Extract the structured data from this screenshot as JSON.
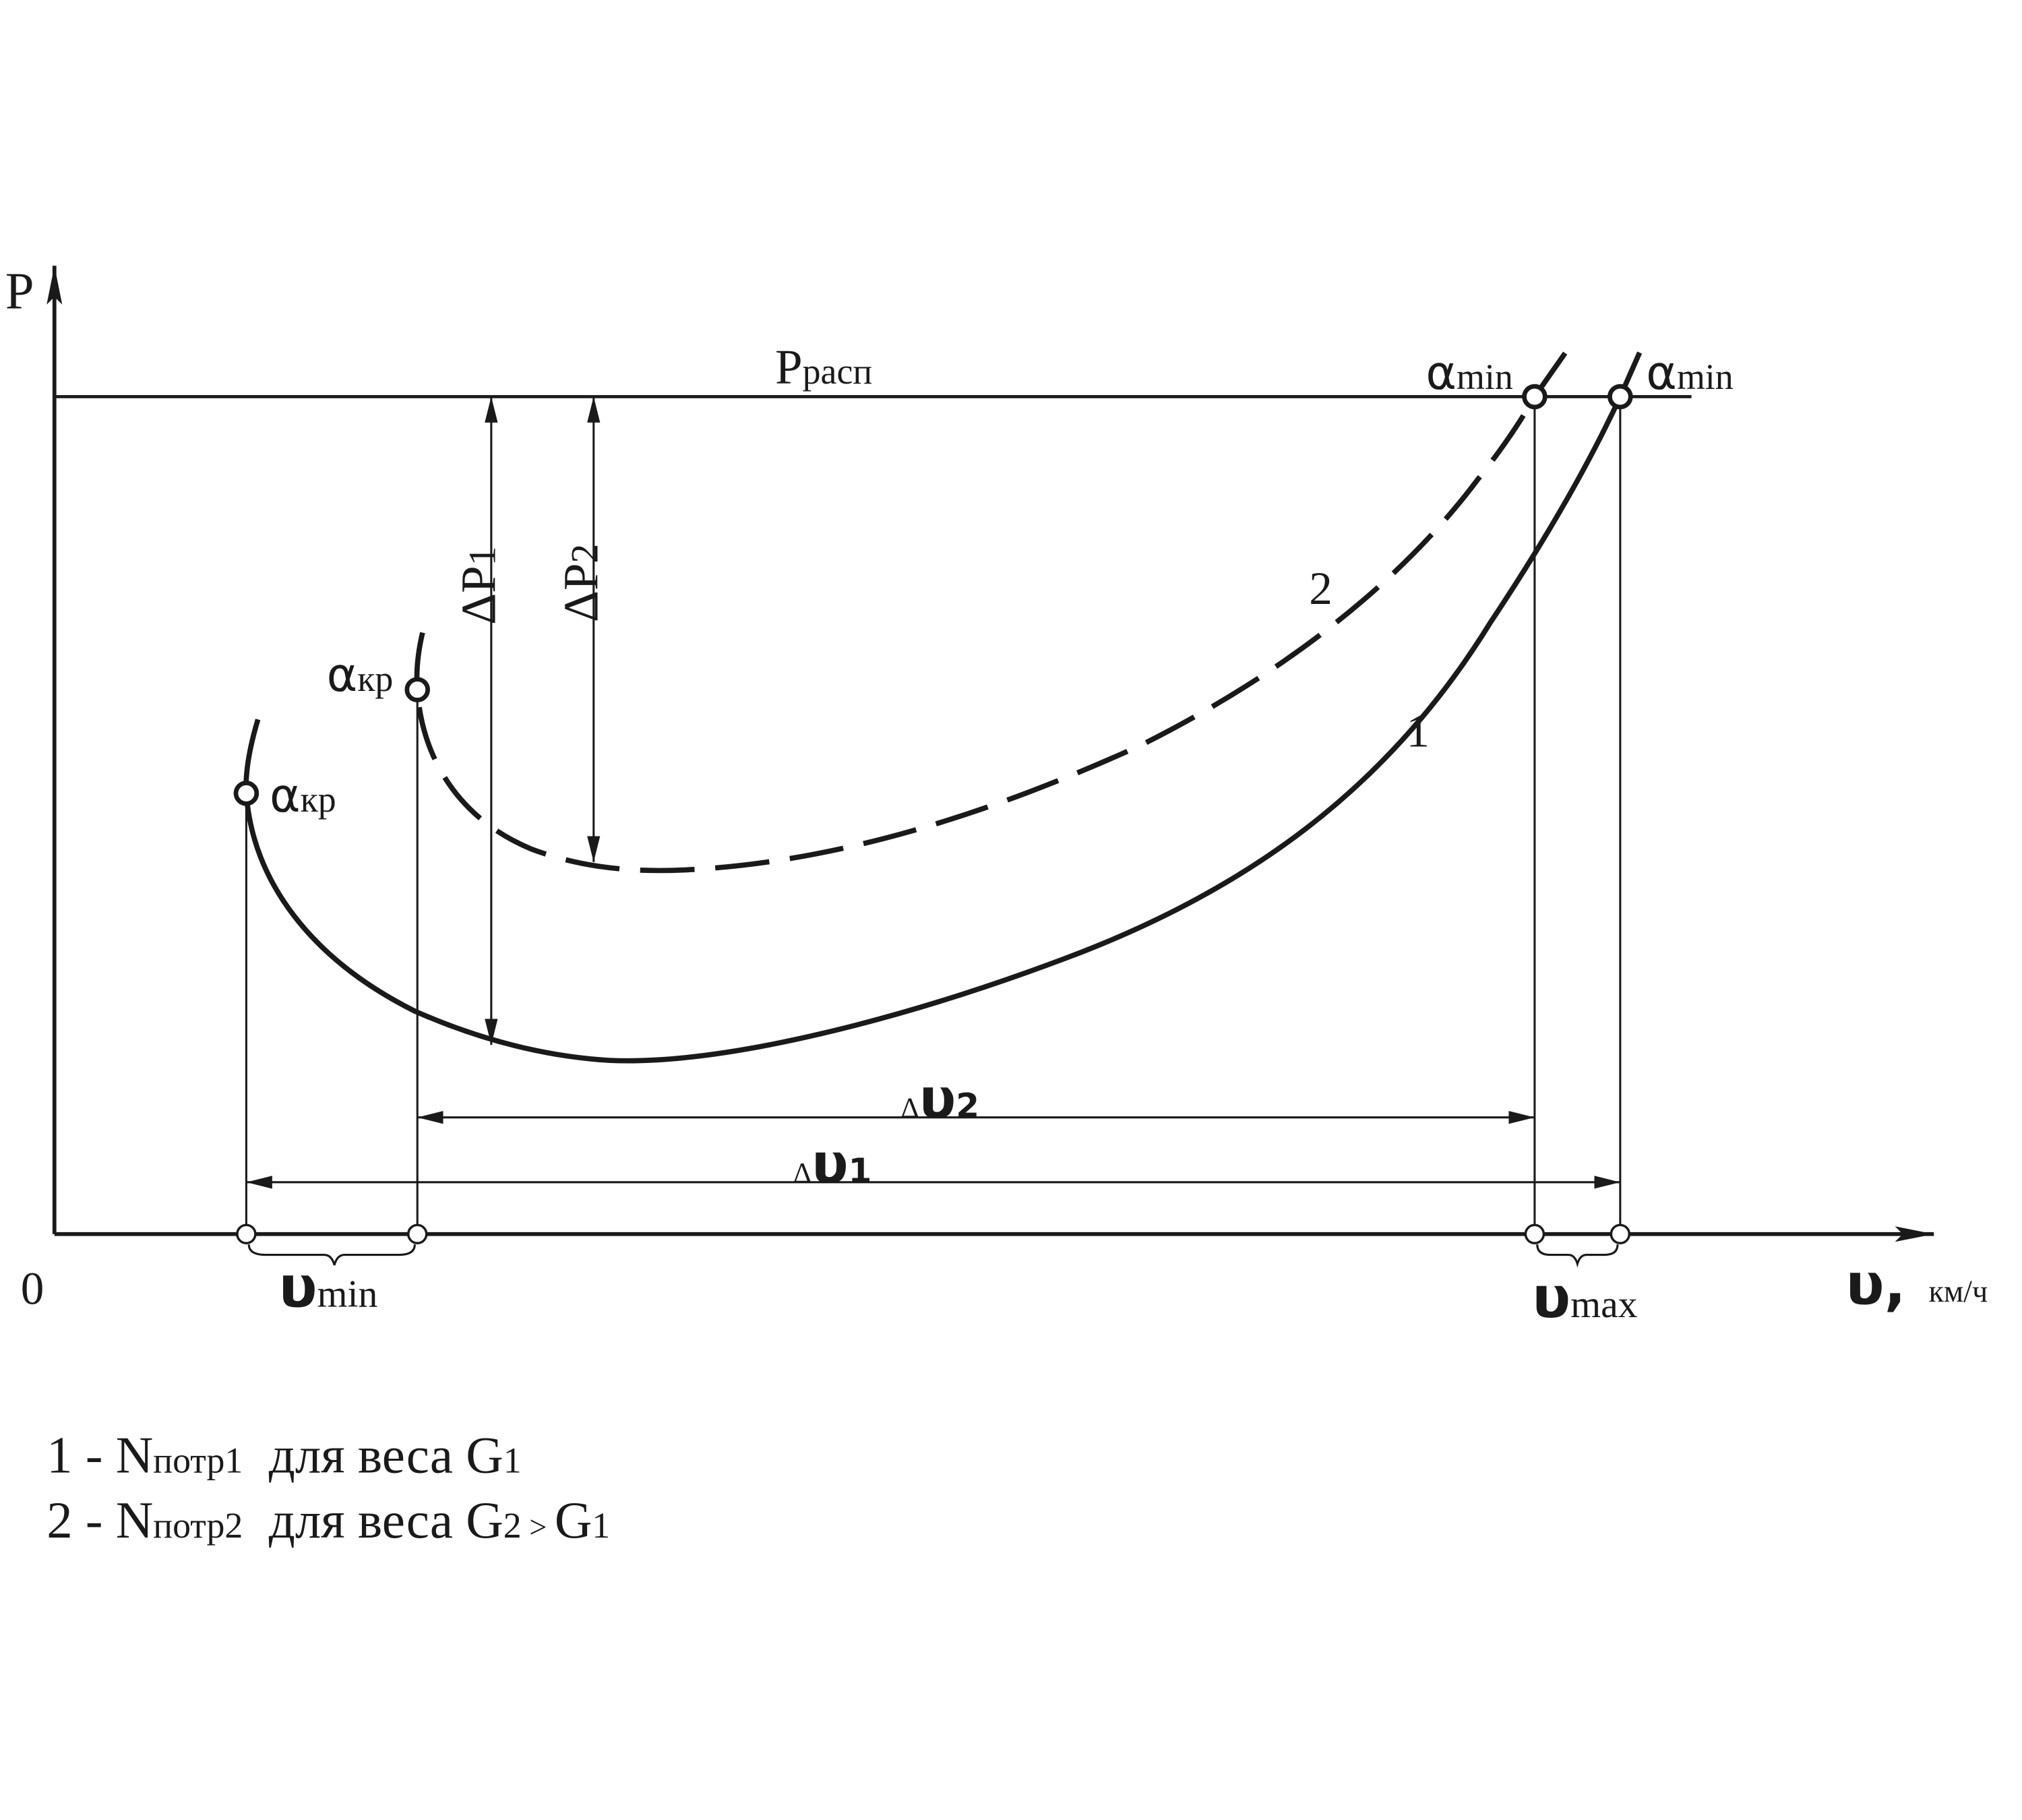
{
  "axes": {
    "y_label": "P",
    "origin": "0",
    "x_label": "υ,",
    "x_unit": "км/ч"
  },
  "available_thrust": {
    "main": "P",
    "sub": "расп"
  },
  "points": {
    "alpha_min_2": {
      "main": "α",
      "sub": "min"
    },
    "alpha_min_1": {
      "main": "α",
      "sub": "min"
    },
    "alpha_kr_2": {
      "main": "α",
      "sub": "кр"
    },
    "alpha_kr_1": {
      "main": "α",
      "sub": "кр"
    }
  },
  "curves": {
    "curve_1": "1",
    "curve_2": "2"
  },
  "dimensions": {
    "delta_p1": {
      "main": "ΔP",
      "sub": "1"
    },
    "delta_p2": {
      "main": "ΔP",
      "sub": "2"
    },
    "delta_v2": {
      "delta": "Δ",
      "main": "υ",
      "sub": "2"
    },
    "delta_v1": {
      "delta": "Δ",
      "main": "υ",
      "sub": "1"
    },
    "v_min": {
      "main": "υ",
      "sub": "min"
    },
    "v_max": {
      "main": "υ",
      "sub": "max"
    }
  },
  "legend": [
    {
      "key": "1 - ",
      "symbol": "N",
      "symbol_sub": "потр1",
      "text": "  для веса ",
      "weight": "G",
      "weight_sub": "1"
    },
    {
      "key": "2 - ",
      "symbol": "N",
      "symbol_sub": "потр2",
      "text": "  для веса ",
      "weight": "G",
      "weight_sub": "2",
      "relation": " > ",
      "other": "G",
      "other_sub": "1"
    }
  ]
}
